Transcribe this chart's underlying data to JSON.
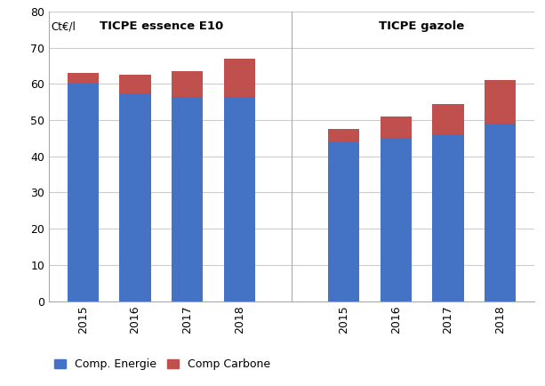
{
  "essence_years": [
    "2015",
    "2016",
    "2017",
    "2018"
  ],
  "gazole_years": [
    "2015",
    "2016",
    "2017",
    "2018"
  ],
  "essence_energy": [
    60.0,
    57.5,
    56.5,
    56.5
  ],
  "essence_carbon": [
    3.0,
    5.0,
    7.0,
    10.5
  ],
  "gazole_energy": [
    44.0,
    45.0,
    46.0,
    49.0
  ],
  "gazole_carbon": [
    3.5,
    6.0,
    8.5,
    12.0
  ],
  "color_energy": "#4472C4",
  "color_carbon": "#C0504D",
  "ct_label": "Ct€/l",
  "ylim": [
    0,
    80
  ],
  "yticks": [
    0,
    10,
    20,
    30,
    40,
    50,
    60,
    70,
    80
  ],
  "title_essence": "TICPE essence E10",
  "title_gazole": "TICPE gazole",
  "legend_energy": "Comp. Energie",
  "legend_carbon": "Comp Carbone",
  "bar_width": 0.6,
  "background_color": "#ffffff",
  "grid_color": "#cccccc",
  "spine_color": "#aaaaaa"
}
